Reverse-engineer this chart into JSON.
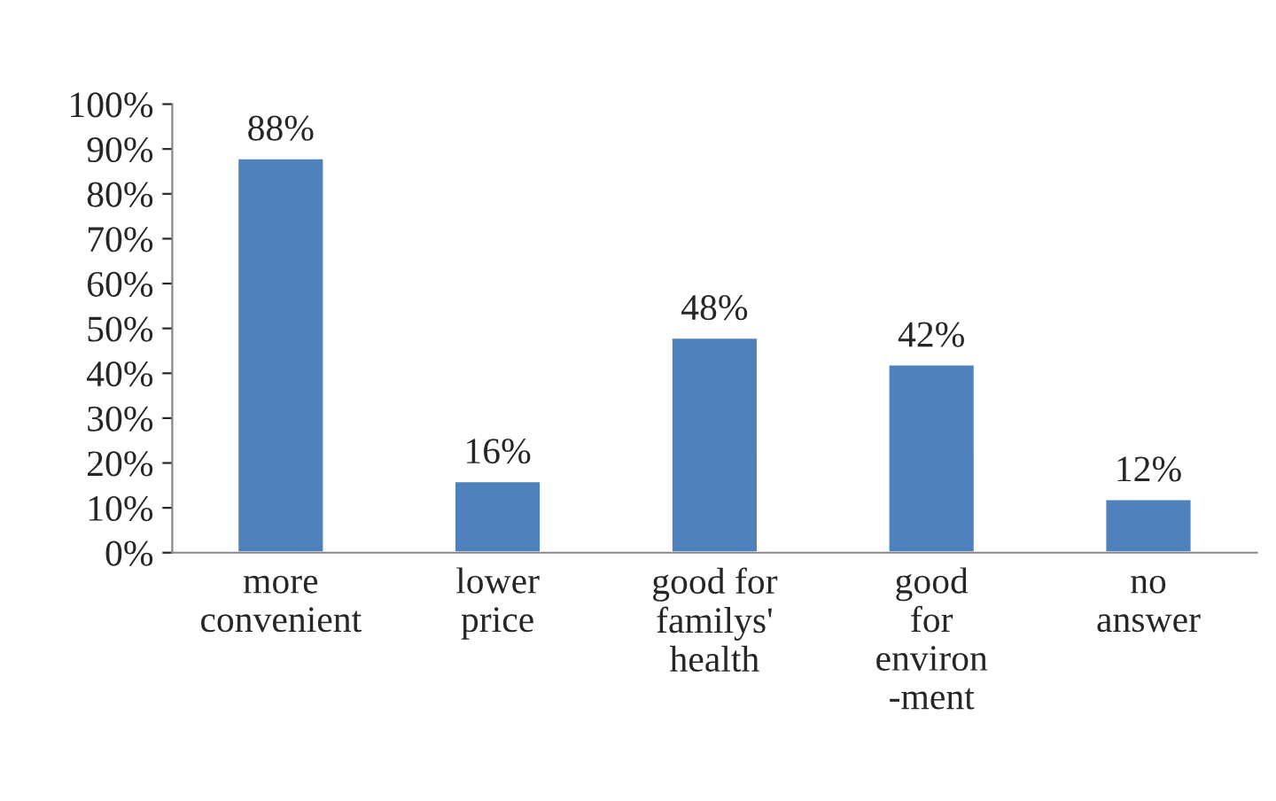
{
  "chart_data": {
    "type": "bar",
    "categories": [
      "more\nconvenient",
      "lower\nprice",
      "good for\nfamilys'\nhealth",
      "good\nfor\nenviron\n-ment",
      "no\nanswer"
    ],
    "values": [
      88,
      16,
      48,
      42,
      12
    ],
    "value_labels": [
      "88%",
      "16%",
      "48%",
      "42%",
      "12%"
    ],
    "color": "#4f81bd",
    "ylim": [
      0,
      100
    ],
    "yticks": [
      {
        "value": 0,
        "label": "0%"
      },
      {
        "value": 10,
        "label": "10%"
      },
      {
        "value": 20,
        "label": "20%"
      },
      {
        "value": 30,
        "label": "30%"
      },
      {
        "value": 40,
        "label": "40%"
      },
      {
        "value": 50,
        "label": "50%"
      },
      {
        "value": 60,
        "label": "60%"
      },
      {
        "value": 70,
        "label": "70%"
      },
      {
        "value": 80,
        "label": "80%"
      },
      {
        "value": 90,
        "label": "90%"
      },
      {
        "value": 100,
        "label": "100%"
      }
    ],
    "grid": false,
    "legend": false
  }
}
